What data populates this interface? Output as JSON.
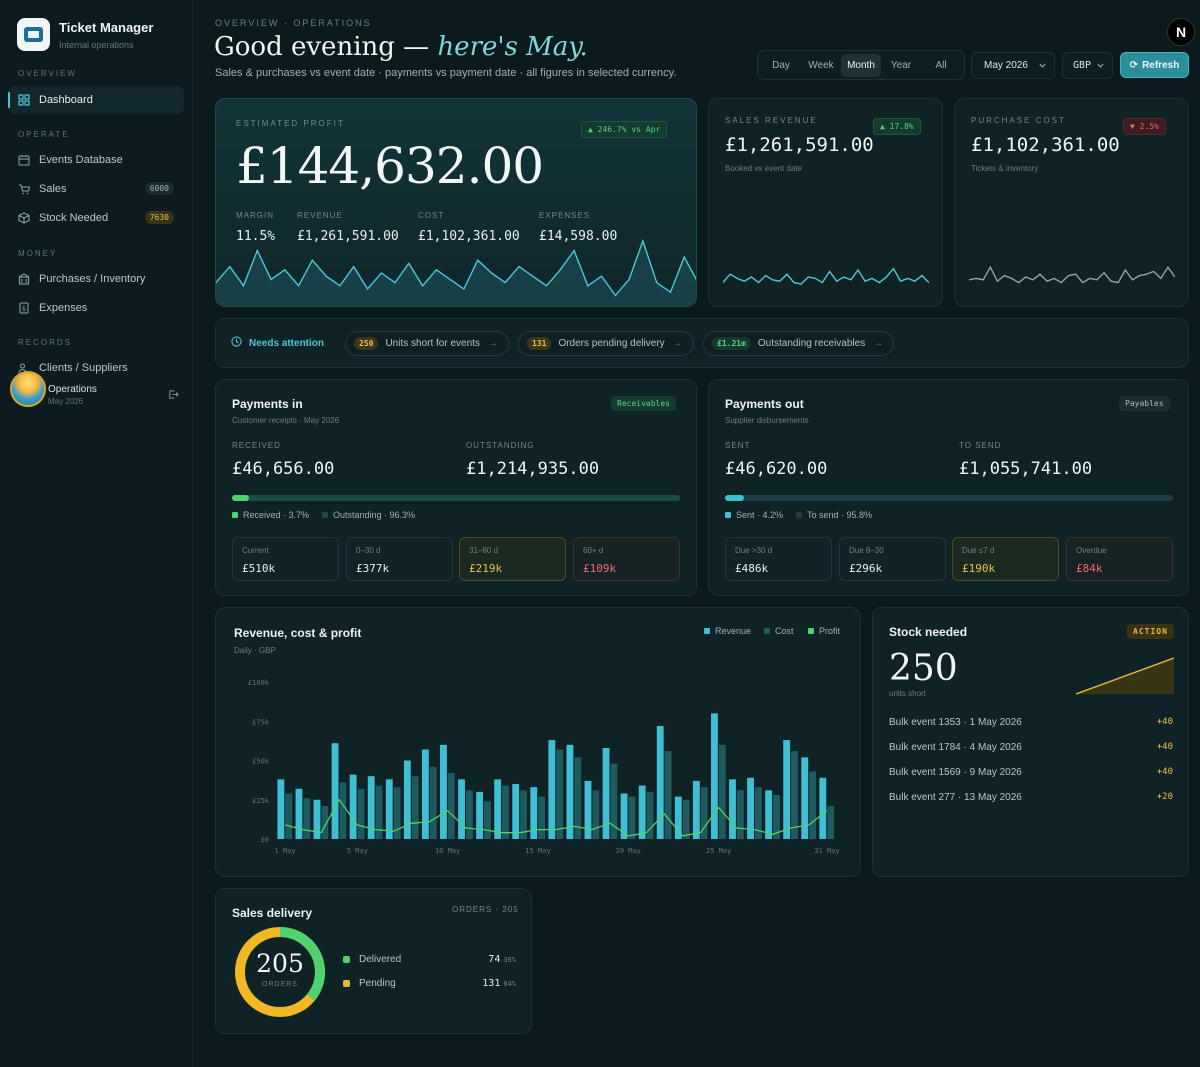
{
  "sidebar": {
    "app_title": "Ticket Manager",
    "app_subtitle": "Internal operations",
    "sections": {
      "overview": "OVERVIEW",
      "operate": "OPERATE",
      "money": "MONEY",
      "records": "RECORDS"
    },
    "items": {
      "dashboard": "Dashboard",
      "events_database": "Events Database",
      "sales": "Sales",
      "sales_badge": "6000",
      "stock_needed": "Stock Needed",
      "stock_badge": "7630",
      "purchases_inventory": "Purchases / Inventory",
      "expenses": "Expenses",
      "clients_suppliers": "Clients / Suppliers"
    },
    "user": {
      "name": "Operations",
      "sub": "May 2026"
    }
  },
  "header": {
    "eyebrow": "OVERVIEW · OPERATIONS",
    "greeting_main": "Good evening — ",
    "greeting_accent": "here's May.",
    "subtitle": "Sales & purchases vs event date · payments vs payment date · all figures in selected currency.",
    "periods": [
      "Day",
      "Week",
      "Month",
      "Year",
      "All"
    ],
    "active_period": "Month",
    "month_select": "May 2026",
    "currency_select": "GBP",
    "refresh_label": "Refresh",
    "profile_initial": "N"
  },
  "profit_card": {
    "label": "ESTIMATED PROFIT",
    "change": "246.7% vs Apr",
    "value": "£144,632.00",
    "margin_label": "MARGIN",
    "margin": "11.5%",
    "revenue_label": "REVENUE",
    "revenue": "£1,261,591.00",
    "cost_label": "COST",
    "cost": "£1,102,361.00",
    "expenses_label": "EXPENSES",
    "expenses": "£14,598.00",
    "spark": [
      0.35,
      0.6,
      0.3,
      0.85,
      0.4,
      0.55,
      0.3,
      0.7,
      0.45,
      0.3,
      0.6,
      0.25,
      0.5,
      0.35,
      0.65,
      0.3,
      0.55,
      0.4,
      0.25,
      0.7,
      0.5,
      0.35,
      0.6,
      0.45,
      0.3,
      0.55,
      0.85,
      0.3,
      0.45,
      0.15,
      0.4,
      1.0,
      0.35,
      0.2,
      0.75,
      0.35
    ]
  },
  "sales_card": {
    "label": "SALES REVENUE",
    "change": "17.8%",
    "value": "£1,261,591.00",
    "sub": "Booked vs event date",
    "spark": [
      0.3,
      0.6,
      0.45,
      0.35,
      0.5,
      0.3,
      0.55,
      0.4,
      0.35,
      0.6,
      0.3,
      0.25,
      0.5,
      0.45,
      0.3,
      0.7,
      0.35,
      0.5,
      0.4,
      0.75,
      0.35,
      0.45,
      0.3,
      0.5,
      0.8,
      0.35,
      0.45,
      0.35,
      0.55,
      0.3
    ]
  },
  "purchase_card": {
    "label": "PURCHASE COST",
    "change": "2.5%",
    "value": "£1,102,361.00",
    "sub": "Tickets & inventory",
    "spark": [
      0.4,
      0.45,
      0.4,
      0.85,
      0.35,
      0.55,
      0.45,
      0.3,
      0.5,
      0.4,
      0.6,
      0.35,
      0.45,
      0.3,
      0.55,
      0.6,
      0.3,
      0.45,
      0.4,
      0.65,
      0.35,
      0.3,
      0.75,
      0.4,
      0.55,
      0.6,
      0.7,
      0.45,
      0.85,
      0.5
    ]
  },
  "attention": {
    "title": "Needs attention",
    "chips": [
      {
        "badge": "250",
        "label": "Units short for events"
      },
      {
        "badge": "131",
        "label": "Orders pending delivery"
      },
      {
        "badge": "£1.21m",
        "label": "Outstanding receivables"
      }
    ]
  },
  "payments_in": {
    "title": "Payments in",
    "sub": "Customer receipts · May 2026",
    "tag": "Receivables",
    "received_label": "RECEIVED",
    "received": "£46,656.00",
    "outstanding_label": "OUTSTANDING",
    "outstanding": "£1,214,935.00",
    "progress": 3.7,
    "legend_a": "Received · 3.7%",
    "legend_b": "Outstanding · 96.3%",
    "aging": [
      {
        "label": "Current",
        "value": "£510k"
      },
      {
        "label": "0–30 d",
        "value": "£377k"
      },
      {
        "label": "31–60 d",
        "value": "£219k"
      },
      {
        "label": "60+ d",
        "value": "£109k"
      }
    ]
  },
  "payments_out": {
    "title": "Payments out",
    "sub": "Supplier disbursements",
    "tag": "Payables",
    "sent_label": "SENT",
    "sent": "£46,620.00",
    "to_send_label": "TO SEND",
    "to_send": "£1,055,741.00",
    "progress": 4.2,
    "legend_a": "Sent · 4.2%",
    "legend_b": "To send · 95.8%",
    "aging": [
      {
        "label": "Due >30 d",
        "value": "£486k"
      },
      {
        "label": "Due 8–30",
        "value": "£296k"
      },
      {
        "label": "Due ≤7 d",
        "value": "£190k"
      },
      {
        "label": "Overdue",
        "value": "£84k"
      }
    ]
  },
  "stock_card": {
    "title": "Stock needed",
    "tag": "ACTION",
    "value": "250",
    "sub": "units short",
    "rows": [
      {
        "label": "Bulk event 1353 · 1 May 2026",
        "delta": "+40"
      },
      {
        "label": "Bulk event 1784 · 4 May 2026",
        "delta": "+40"
      },
      {
        "label": "Bulk event 1569 · 9 May 2026",
        "delta": "+40"
      },
      {
        "label": "Bulk event 277 · 13 May 2026",
        "delta": "+20"
      }
    ]
  },
  "delivery_card": {
    "title": "Sales delivery",
    "orders_label": "ORDERS · 205",
    "center_value": "205",
    "center_label": "ORDERS",
    "delivered_label": "Delivered",
    "delivered": "74",
    "delivered_pct": "36%",
    "pending_label": "Pending",
    "pending": "131",
    "pending_pct": "64%"
  },
  "colors": {
    "revenue": "#3fbfd3",
    "cost": "#1f5a5e",
    "profit": "#4ed36f",
    "accent": "#2c8d9b",
    "amber": "#e8b93a"
  },
  "chart_data": {
    "type": "bar",
    "title": "Revenue, cost & profit",
    "subtitle": "Daily · GBP",
    "y_ticks": [
      "£100k",
      "£75k",
      "£50k",
      "£25k",
      "£0"
    ],
    "x_ticks": [
      "1 May",
      "5 May",
      "10 May",
      "15 May",
      "20 May",
      "25 May",
      "31 May"
    ],
    "ylim": [
      0,
      100000
    ],
    "legend": [
      "Revenue",
      "Cost",
      "Profit"
    ],
    "x": [
      1,
      2,
      3,
      4,
      5,
      6,
      7,
      8,
      9,
      10,
      11,
      12,
      13,
      14,
      15,
      16,
      17,
      18,
      19,
      20,
      21,
      22,
      23,
      24,
      25,
      26,
      27,
      28,
      29,
      30,
      31
    ],
    "series": [
      {
        "name": "Revenue",
        "values": [
          38000,
          32000,
          25000,
          61000,
          41000,
          40000,
          38000,
          50000,
          57000,
          60000,
          38000,
          30000,
          38000,
          35000,
          33000,
          63000,
          60000,
          37000,
          58000,
          29000,
          34000,
          72000,
          27000,
          37000,
          80000,
          38000,
          39000,
          31000,
          63000,
          52000,
          39000
        ]
      },
      {
        "name": "Cost",
        "values": [
          29000,
          26000,
          21000,
          36000,
          32000,
          34000,
          33000,
          40000,
          46000,
          42000,
          31000,
          24000,
          34000,
          31000,
          27000,
          57000,
          52000,
          31000,
          48000,
          27000,
          30000,
          56000,
          25000,
          33000,
          60000,
          31000,
          33000,
          28000,
          56000,
          43000,
          21000
        ]
      },
      {
        "name": "Profit",
        "values": [
          9000,
          6000,
          4000,
          25000,
          9000,
          6000,
          5000,
          10000,
          11000,
          18000,
          7000,
          6000,
          4000,
          4000,
          6000,
          6000,
          8000,
          6000,
          10000,
          2000,
          4000,
          16000,
          2000,
          4000,
          20000,
          7000,
          6000,
          3000,
          7000,
          9000,
          18000
        ]
      }
    ]
  }
}
